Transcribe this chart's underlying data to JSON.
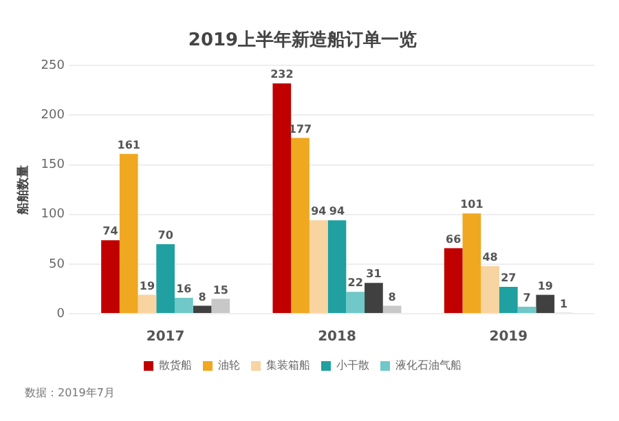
{
  "chart_data": {
    "type": "bar",
    "title": "2019上半年新造船订单一览",
    "ylabel": "船舶数量",
    "categories": [
      "2017",
      "2018",
      "2019"
    ],
    "series": [
      {
        "name": "散货船",
        "color": "#c00000",
        "values": [
          74,
          232,
          66
        ]
      },
      {
        "name": "油轮",
        "color": "#f0a820",
        "values": [
          161,
          177,
          101
        ]
      },
      {
        "name": "集装箱船",
        "color": "#f8d4a0",
        "values": [
          19,
          94,
          48
        ]
      },
      {
        "name": "小干散",
        "color": "#20a0a0",
        "values": [
          70,
          94,
          27
        ]
      },
      {
        "name": "液化石油气船",
        "color": "#70c8c8",
        "values": [
          16,
          22,
          7
        ]
      },
      {
        "color": "#404040",
        "values": [
          8,
          31,
          19
        ]
      },
      {
        "color": "#c8c8c8",
        "values": [
          15,
          8,
          1
        ]
      }
    ],
    "ylim": [
      0,
      250
    ],
    "yticks": [
      0,
      50,
      100,
      150,
      200,
      250
    ],
    "grid": "y",
    "legend": "bottom",
    "data_labels": true,
    "annotations": [
      "数据：2019年7月"
    ]
  }
}
